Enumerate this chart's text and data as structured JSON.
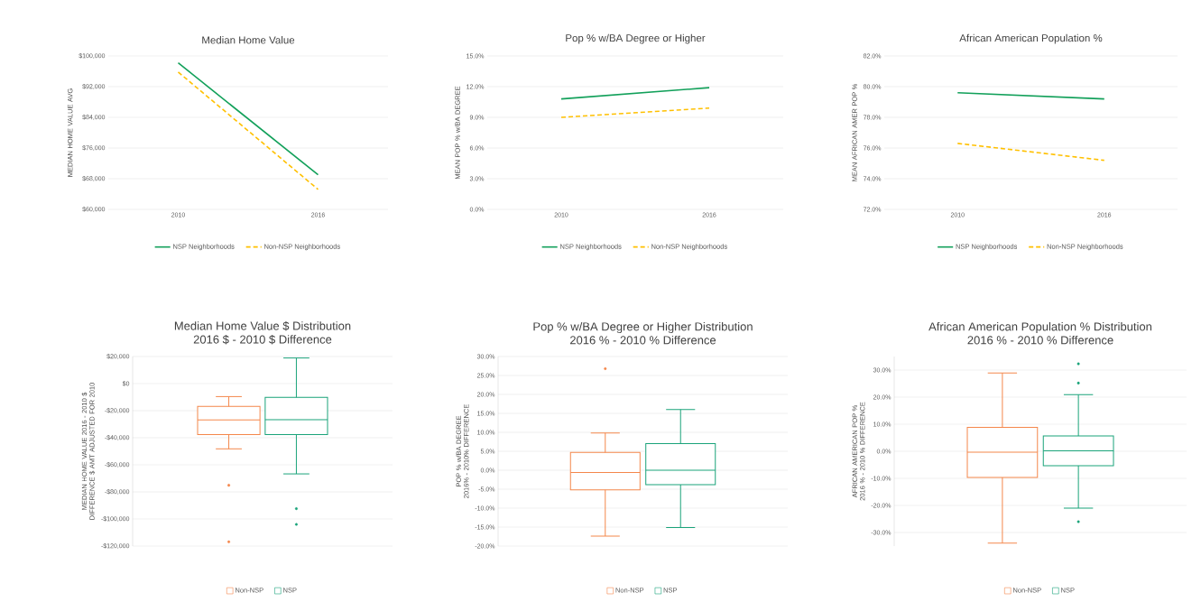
{
  "chart_data": [
    {
      "type": "line",
      "title": "Median Home Value",
      "ylabel": "MEDIAN HOME VALUE AVG",
      "categories": [
        "2010",
        "2016"
      ],
      "ylim": [
        60000,
        100000
      ],
      "yticks": [
        {
          "value": 60000,
          "label": "$60,000"
        },
        {
          "value": 68000,
          "label": "$68,000"
        },
        {
          "value": 76000,
          "label": "$76,000"
        },
        {
          "value": 84000,
          "label": "$84,000"
        },
        {
          "value": 92000,
          "label": "$92,000"
        },
        {
          "value": 100000,
          "label": "$100,000"
        }
      ],
      "grid": "y",
      "legend": "bottom",
      "marker": "none",
      "series": [
        {
          "name": "NSP Neighborhoods",
          "color": "#12a05a",
          "values": [
            98200,
            69000
          ],
          "line_style": "solid"
        },
        {
          "name": "Non-NSP Neighborhoods",
          "color": "#ffc000",
          "values": [
            95800,
            65200
          ],
          "line_style": "dashed"
        }
      ]
    },
    {
      "type": "line",
      "title": "Pop % w/BA Degree or Higher",
      "ylabel": "MEAN POP % w/BA DEGREE",
      "categories": [
        "2010",
        "2016"
      ],
      "ylim": [
        0,
        15
      ],
      "yticks": [
        {
          "value": 0,
          "label": "0.0%"
        },
        {
          "value": 3,
          "label": "3.0%"
        },
        {
          "value": 6,
          "label": "6.0%"
        },
        {
          "value": 9,
          "label": "9.0%"
        },
        {
          "value": 12,
          "label": "12.0%"
        },
        {
          "value": 15,
          "label": "15.0%"
        }
      ],
      "grid": "y",
      "legend": "bottom",
      "marker": "none",
      "series": [
        {
          "name": "NSP Neighborhoods",
          "color": "#12a05a",
          "values": [
            10.8,
            11.9
          ],
          "line_style": "solid"
        },
        {
          "name": "Non-NSP Neighborhoods",
          "color": "#ffc000",
          "values": [
            9.0,
            9.9
          ],
          "line_style": "dashed"
        }
      ]
    },
    {
      "type": "line",
      "title": "African American Population %",
      "ylabel": "MEAN AFRICAN AMER POP %",
      "categories": [
        "2010",
        "2016"
      ],
      "ylim": [
        72,
        82
      ],
      "yticks": [
        {
          "value": 72,
          "label": "72.0%"
        },
        {
          "value": 74,
          "label": "74.0%"
        },
        {
          "value": 76,
          "label": "76.0%"
        },
        {
          "value": 78,
          "label": "78.0%"
        },
        {
          "value": 80,
          "label": "80.0%"
        },
        {
          "value": 82,
          "label": "82.0%"
        }
      ],
      "grid": "y",
      "legend": "bottom",
      "marker": "none",
      "series": [
        {
          "name": "NSP Neighborhoods",
          "color": "#12a05a",
          "values": [
            79.6,
            79.2
          ],
          "line_style": "solid"
        },
        {
          "name": "Non-NSP Neighborhoods",
          "color": "#ffc000",
          "values": [
            76.3,
            75.2
          ],
          "line_style": "dashed"
        }
      ]
    },
    {
      "type": "box",
      "title": "Median Home Value $ Distribution",
      "subtitle": "2016 $ - 2010 $ Difference",
      "ylabel": "MEDIAN HOME VALUE 2016 - 2010 $ DIFFERENCE $ AMT ADJUSTED FOR 2010",
      "categories": [
        null
      ],
      "ylim": [
        -120000,
        20000
      ],
      "yticks": [
        {
          "value": -120000,
          "label": "-$120,000"
        },
        {
          "value": -100000,
          "label": "-$100,000"
        },
        {
          "value": -80000,
          "label": "-$80,000"
        },
        {
          "value": -60000,
          "label": "-$60,000"
        },
        {
          "value": -40000,
          "label": "-$40,000"
        },
        {
          "value": -20000,
          "label": "-$20,000"
        },
        {
          "value": 0,
          "label": "$0"
        },
        {
          "value": 20000,
          "label": "$20,000"
        }
      ],
      "grid": "y",
      "legend": "bottom",
      "series": [
        {
          "name": "Non-NSP",
          "color": "#f4874b",
          "boxes": [
            {
              "low": -48200,
              "q1": -37600,
              "median": -26900,
              "q3": -16900,
              "high": -9600,
              "outliers": [
                -75100,
                -116900
              ]
            }
          ]
        },
        {
          "name": "NSP",
          "color": "#1aa37a",
          "boxes": [
            {
              "low": -66700,
              "q1": -37600,
              "median": -26700,
              "q3": -10200,
              "high": 18900,
              "outliers": [
                -92400,
                -104000
              ]
            }
          ]
        }
      ]
    },
    {
      "type": "box",
      "title": "Pop % w/BA Degree or Higher Distribution",
      "subtitle": "2016 % - 2010 % Difference",
      "ylabel": "POP % w/BA DEGREE 2016% - 2010% DIFFERENCE",
      "categories": [
        null
      ],
      "ylim": [
        -20,
        30
      ],
      "yticks": [
        {
          "value": -20,
          "label": "-20.0%"
        },
        {
          "value": -15,
          "label": "-15.0%"
        },
        {
          "value": -10,
          "label": "-10.0%"
        },
        {
          "value": -5,
          "label": "-5.0%"
        },
        {
          "value": 0,
          "label": "0.0%"
        },
        {
          "value": 5,
          "label": "5.0%"
        },
        {
          "value": 10,
          "label": "10.0%"
        },
        {
          "value": 15,
          "label": "15.0%"
        },
        {
          "value": 20,
          "label": "20.0%"
        },
        {
          "value": 25,
          "label": "25.0%"
        },
        {
          "value": 30,
          "label": "30.0%"
        }
      ],
      "grid": "y",
      "legend": "bottom",
      "series": [
        {
          "name": "Non-NSP",
          "color": "#f4874b",
          "boxes": [
            {
              "low": -17.4,
              "q1": -5.2,
              "median": -0.6,
              "q3": 4.7,
              "high": 9.8,
              "outliers": [
                26.8
              ]
            }
          ]
        },
        {
          "name": "NSP",
          "color": "#1aa37a",
          "boxes": [
            {
              "low": -15.1,
              "q1": -3.8,
              "median": 0.0,
              "q3": 7.0,
              "high": 16.0
            }
          ]
        }
      ]
    },
    {
      "type": "box",
      "title": "African American Population % Distribution",
      "subtitle": "2016 % - 2010 % Difference",
      "ylabel": "AFRICAN AMERICAN POP % 2016 % - 2010 % DIFFERENCE",
      "categories": [
        null
      ],
      "ylim": [
        -35,
        35
      ],
      "yticks": [
        {
          "value": -30,
          "label": "-30.0%"
        },
        {
          "value": -20,
          "label": "-20.0%"
        },
        {
          "value": -10,
          "label": "-10.0%"
        },
        {
          "value": 0,
          "label": "0.0%"
        },
        {
          "value": 10,
          "label": "10.0%"
        },
        {
          "value": 20,
          "label": "20.0%"
        },
        {
          "value": 30,
          "label": "30.0%"
        }
      ],
      "grid": "y",
      "legend": "bottom",
      "series": [
        {
          "name": "Non-NSP",
          "color": "#f4874b",
          "boxes": [
            {
              "low": -33.9,
              "q1": -9.7,
              "median": -0.3,
              "q3": 8.8,
              "high": 28.9
            }
          ]
        },
        {
          "name": "NSP",
          "color": "#1aa37a",
          "boxes": [
            {
              "low": -21.0,
              "q1": -5.3,
              "median": 0.2,
              "q3": 5.7,
              "high": 20.9,
              "outliers": [
                32.3,
                25.2,
                -26.0
              ]
            }
          ]
        }
      ]
    }
  ]
}
